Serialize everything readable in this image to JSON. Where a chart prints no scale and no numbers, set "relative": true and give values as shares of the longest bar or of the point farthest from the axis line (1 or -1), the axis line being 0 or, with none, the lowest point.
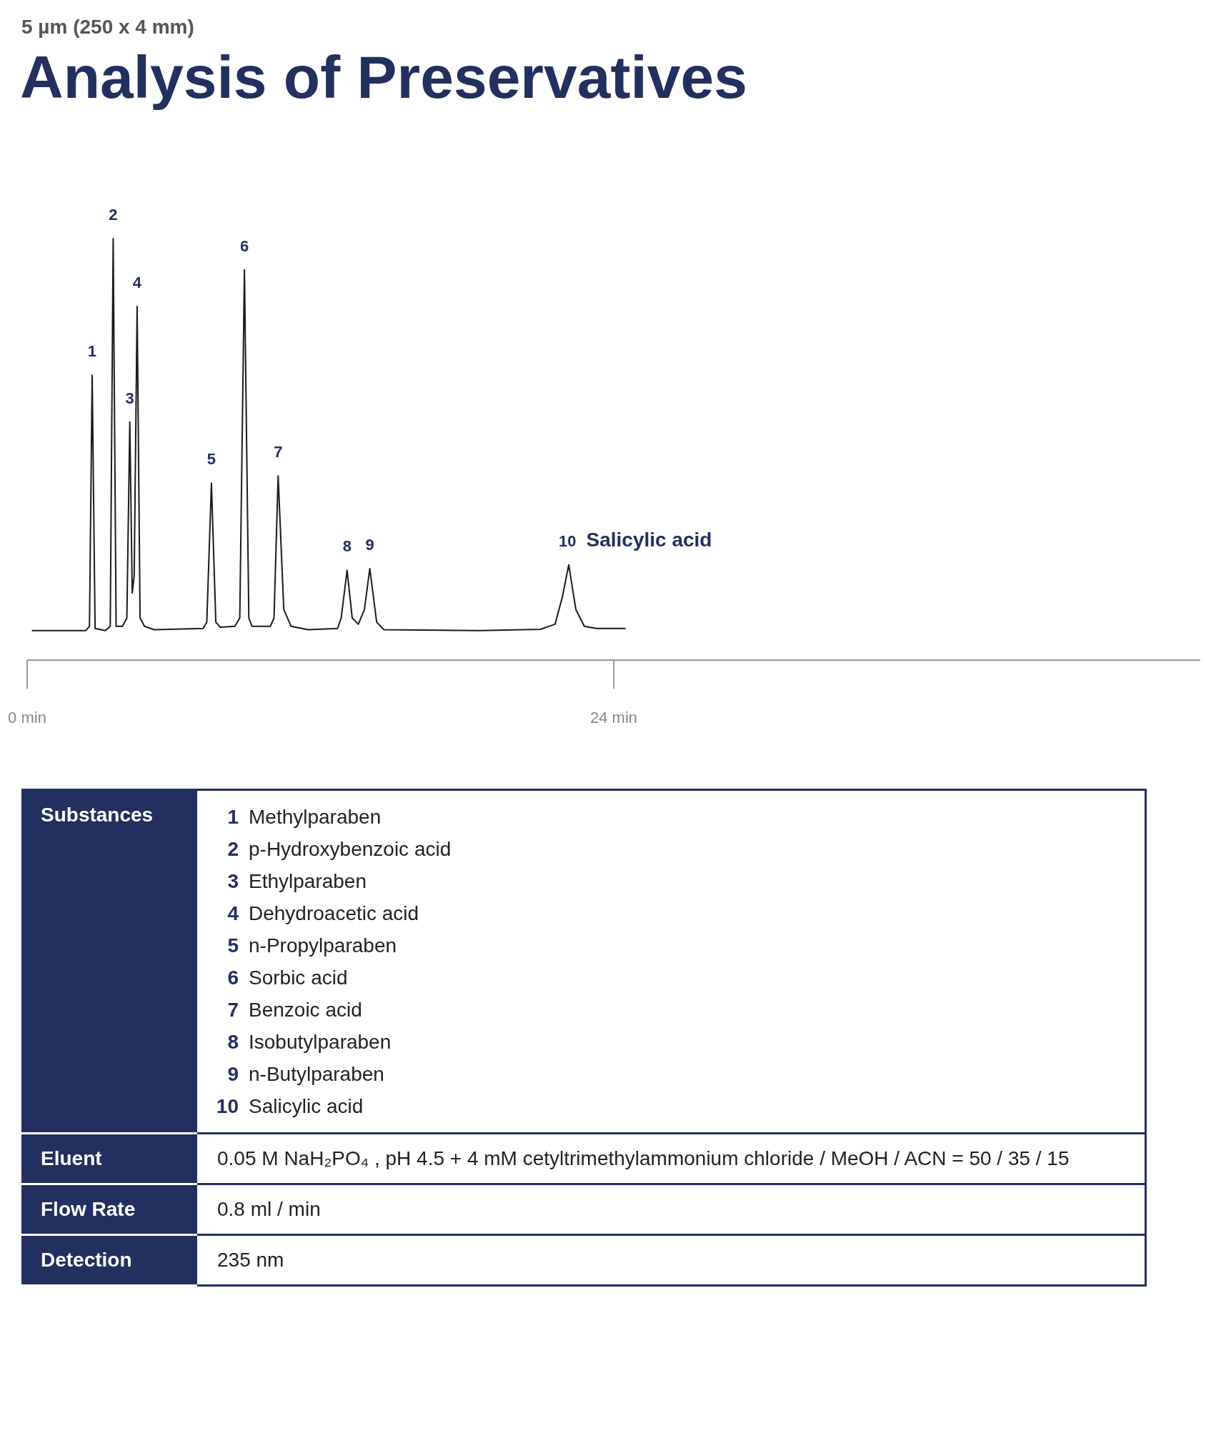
{
  "chart_data": {
    "type": "line",
    "subtitle": "5 µm (250 x 4 mm)",
    "title": "Analysis of Preservatives",
    "relative": true,
    "color": "#1a1a1a",
    "line_style": "solid",
    "x": [
      0.19,
      2.4,
      2.55,
      2.66,
      2.78,
      3.2,
      3.4,
      3.52,
      3.64,
      3.9,
      4.08,
      4.2,
      4.3,
      4.38,
      4.5,
      4.62,
      4.8,
      5.2,
      7.2,
      7.35,
      7.54,
      7.72,
      7.9,
      8.5,
      8.7,
      8.89,
      9.07,
      9.2,
      9.95,
      10.1,
      10.27,
      10.5,
      10.8,
      11.5,
      12.7,
      12.85,
      13.09,
      13.3,
      13.55,
      13.8,
      14.02,
      14.3,
      14.6,
      18.5,
      21,
      21.6,
      21.9,
      22.16,
      22.45,
      22.8,
      23.3,
      24.49
    ],
    "values": [
      0.07,
      0.07,
      0.08,
      0.676,
      0.075,
      0.07,
      0.08,
      1,
      0.08,
      0.08,
      0.1,
      0.565,
      0.159,
      0.2,
      0.839,
      0.1,
      0.08,
      0.072,
      0.075,
      0.09,
      0.42,
      0.09,
      0.078,
      0.08,
      0.1,
      0.926,
      0.1,
      0.08,
      0.08,
      0.1,
      0.437,
      0.12,
      0.08,
      0.072,
      0.075,
      0.1,
      0.213,
      0.1,
      0.085,
      0.12,
      0.217,
      0.09,
      0.072,
      0.07,
      0.073,
      0.085,
      0.15,
      0.226,
      0.12,
      0.08,
      0.075,
      0.075
    ],
    "xlim": [
      0,
      48
    ],
    "xticks": [
      {
        "value": 0,
        "label": "0 min"
      },
      {
        "value": 24,
        "label": "24 min"
      }
    ],
    "annotations": [
      {
        "text": "1",
        "x": 2.66,
        "y": 0.676
      },
      {
        "text": "2",
        "x": 3.52,
        "y": 1
      },
      {
        "text": "3",
        "x": 4.2,
        "y": 0.565
      },
      {
        "text": "4",
        "x": 4.5,
        "y": 0.839
      },
      {
        "text": "5",
        "x": 7.54,
        "y": 0.42
      },
      {
        "text": "6",
        "x": 8.89,
        "y": 0.926
      },
      {
        "text": "7",
        "x": 10.27,
        "y": 0.437
      },
      {
        "text": "8",
        "x": 13.09,
        "y": 0.213
      },
      {
        "text": "9",
        "x": 14.02,
        "y": 0.217
      },
      {
        "text": "10 Salicylic acid",
        "x": 22.16,
        "y": 0.226
      },
      "Substances",
      "1 Methylparaben\n2 p-Hydroxybenzoic acid\n3 Ethylparaben\n4 Dehydroacetic acid\n5 n-Propylparaben\n6 Sorbic acid\n7 Benzoic acid\n8 Isobutylparaben\n9 n-Butylparaben\n10 Salicylic acid",
      "Eluent",
      "0.05 M NaH₂PO₄ , pH 4.5 + 4 mM cetyltrimethylammonium chloride / MeOH / ACN = 50 / 35 / 15",
      "Flow Rate",
      "0.8 ml / min",
      "Detection",
      "235 nm"
    ]
  }
}
